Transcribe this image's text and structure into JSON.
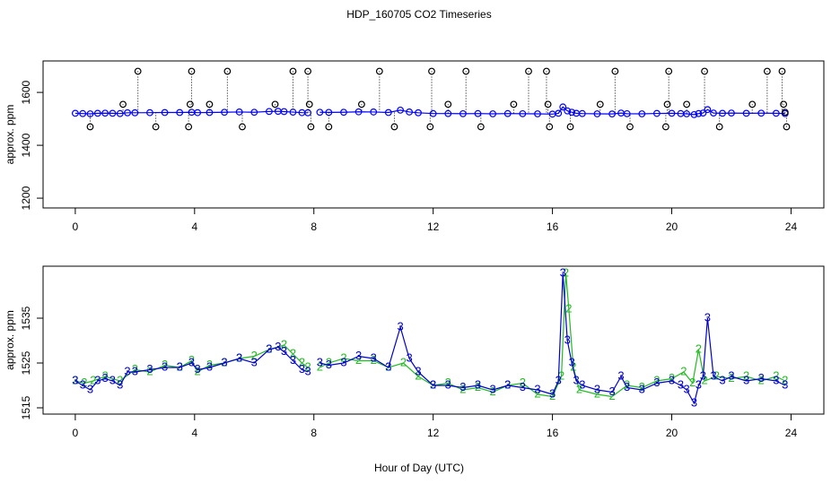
{
  "chart_data": [
    {
      "type": "line",
      "title": "HDP_160705  CO2 Timeseries",
      "ylabel": "approx. ppm",
      "xlim": [
        -1.08,
        25.1
      ],
      "xticks": [
        0,
        4,
        8,
        12,
        16,
        20,
        24
      ],
      "ylim": [
        1163,
        1719
      ],
      "yticks": [
        1200,
        1400,
        1600
      ],
      "series": [
        {
          "color": "#0000ff",
          "marker": "circle",
          "line": true,
          "drop_lines": false,
          "x": [
            0,
            0.25,
            0.5,
            0.75,
            1,
            1.25,
            1.5,
            1.75,
            2,
            2.5,
            3,
            3.5,
            3.9,
            4.1,
            4.5,
            5,
            5.5,
            6,
            6.5,
            6.8,
            7,
            7.3,
            7.6,
            7.8,
            8,
            8.2,
            8.5,
            9,
            9.5,
            10,
            10.5,
            10.9,
            11.2,
            11.5,
            12,
            12.5,
            13,
            13.5,
            14,
            14.5,
            15,
            15.5,
            16,
            16.2,
            16.35,
            16.5,
            16.65,
            16.8,
            17,
            17.5,
            18,
            18.3,
            18.5,
            19,
            19.5,
            20,
            20.3,
            20.5,
            20.75,
            20.9,
            21.05,
            21.2,
            21.4,
            21.7,
            22,
            22.5,
            23,
            23.5,
            23.8
          ],
          "values": [
            1521,
            1520,
            1519,
            1521,
            1521.5,
            1521,
            1520,
            1523,
            1523,
            1523.5,
            1524,
            1524,
            1525,
            1523.5,
            1524,
            1525,
            1526,
            1525,
            1528,
            1528.5,
            1527.5,
            1525.5,
            1523.5,
            1523,
            null,
            1525,
            1524.5,
            1525,
            1526.5,
            1526,
            1524,
            1533,
            1526,
            1523,
            1520,
            1520,
            1519.5,
            1520,
            1519,
            1520,
            1519.5,
            1519,
            1518,
            1521,
            1545,
            1530,
            1525,
            1521,
            1520,
            1519,
            1518.5,
            1522,
            1519.5,
            1519,
            1520.5,
            1521,
            1520,
            1519,
            1516,
            1520,
            1522,
            1535,
            1522,
            1521,
            1522,
            1521,
            1521.5,
            1521,
            1520
          ]
        },
        {
          "color": "#000000",
          "marker": "circle",
          "line": false,
          "drop_lines": true,
          "x": [
            0.5,
            1.6,
            2.1,
            2.7,
            3.8,
            3.85,
            3.9,
            4.5,
            5.1,
            5.6,
            6.7,
            7.3,
            7.8,
            7.85,
            7.9,
            8.5,
            9.6,
            10.2,
            10.7,
            11.9,
            11.95,
            12.5,
            13.1,
            13.6,
            14.7,
            15.2,
            15.8,
            15.85,
            15.9,
            16.6,
            17.6,
            18.1,
            18.6,
            19.8,
            19.85,
            19.9,
            20.5,
            21.1,
            21.6,
            22.7,
            23.2,
            23.7,
            23.75,
            23.8,
            23.85
          ],
          "values": [
            1470,
            1555,
            1680,
            1470,
            1470,
            1555,
            1680,
            1555,
            1680,
            1470,
            1555,
            1680,
            1680,
            1555,
            1470,
            1470,
            1555,
            1680,
            1470,
            1470,
            1680,
            1555,
            1680,
            1470,
            1555,
            1680,
            1680,
            1555,
            1470,
            1470,
            1555,
            1680,
            1470,
            1470,
            1555,
            1680,
            1555,
            1680,
            1470,
            1555,
            1680,
            1680,
            1555,
            1525,
            1470
          ]
        }
      ]
    },
    {
      "type": "line",
      "ylabel": "approx. ppm",
      "xlabel": "Hour of Day (UTC)",
      "xlim": [
        -1.08,
        25.1
      ],
      "xticks": [
        0,
        4,
        8,
        12,
        16,
        20,
        24
      ],
      "ylim": [
        1513.6,
        1546.6
      ],
      "yticks": [
        1515,
        1525,
        1535
      ],
      "series": [
        {
          "color": "#22bb22",
          "marker": "2",
          "line": true,
          "drop_lines": false,
          "x": [
            0,
            0.3,
            0.6,
            1,
            1.5,
            2,
            2.5,
            3,
            3.5,
            3.9,
            4.1,
            4.5,
            5,
            5.5,
            6,
            6.5,
            7,
            7.3,
            7.6,
            7.8,
            8,
            8.2,
            8.5,
            9,
            9.5,
            10,
            10.5,
            11,
            11.5,
            12,
            12.5,
            13,
            13.5,
            14,
            14.5,
            15,
            15.5,
            16,
            16.3,
            16.45,
            16.55,
            16.7,
            16.9,
            17.5,
            18,
            18.5,
            19,
            19.5,
            20,
            20.4,
            20.7,
            20.9,
            21.1,
            21.5,
            22,
            22.5,
            23,
            23.5,
            23.8
          ],
          "values": [
            1521,
            1520.5,
            1521,
            1522,
            1521,
            1523.5,
            1523,
            1524.5,
            1524,
            1525.5,
            1523,
            1524.5,
            1525,
            1526,
            1526.5,
            1528,
            1529,
            1527,
            1525,
            1524,
            null,
            1524,
            1525,
            1526,
            1525.5,
            1525.5,
            1524,
            1525,
            1522,
            1520,
            1520.5,
            1519,
            1519.5,
            1518.5,
            1520,
            1520.5,
            1518,
            1517.5,
            1522,
            1545,
            1537,
            1524,
            1519,
            1518,
            1517.5,
            1520,
            1519.5,
            1521,
            1521.5,
            1523,
            1520.5,
            1528,
            1521,
            1522,
            1521.5,
            1522,
            1521,
            1522,
            1521
          ]
        },
        {
          "color": "#0000cc",
          "marker": "3",
          "line": true,
          "drop_lines": false,
          "x": [
            0,
            0.25,
            0.5,
            0.75,
            1,
            1.25,
            1.5,
            1.75,
            2,
            2.5,
            3,
            3.5,
            3.9,
            4.1,
            4.5,
            5,
            5.5,
            6,
            6.5,
            6.8,
            7,
            7.3,
            7.6,
            7.8,
            8,
            8.2,
            8.5,
            9,
            9.5,
            10,
            10.5,
            10.9,
            11.2,
            11.5,
            12,
            12.5,
            13,
            13.5,
            14,
            14.5,
            15,
            15.5,
            16,
            16.2,
            16.35,
            16.5,
            16.65,
            16.8,
            17,
            17.5,
            18,
            18.3,
            18.5,
            19,
            19.5,
            20,
            20.3,
            20.5,
            20.75,
            20.9,
            21.05,
            21.2,
            21.4,
            21.7,
            22,
            22.5,
            23,
            23.5,
            23.8
          ],
          "values": [
            1521,
            1520,
            1519,
            1521,
            1521.5,
            1521,
            1520,
            1523,
            1523,
            1523.5,
            1524,
            1524,
            1525,
            1523.5,
            1524,
            1525,
            1526,
            1525,
            1528,
            1528.5,
            1527.5,
            1525.5,
            1523.5,
            1523,
            null,
            1525,
            1524.5,
            1525,
            1526.5,
            1526,
            1524,
            1533,
            1526,
            1523,
            1520,
            1520,
            1519.5,
            1520,
            1519,
            1520,
            1519.5,
            1519,
            1518,
            1521,
            1545,
            1530,
            1525,
            1521,
            1520,
            1519,
            1518.5,
            1522,
            1519.5,
            1519,
            1520.5,
            1521,
            1520,
            1519,
            1516,
            1520,
            1522,
            1535,
            1522,
            1521,
            1522,
            1521,
            1521.5,
            1521,
            1520
          ]
        }
      ]
    }
  ]
}
